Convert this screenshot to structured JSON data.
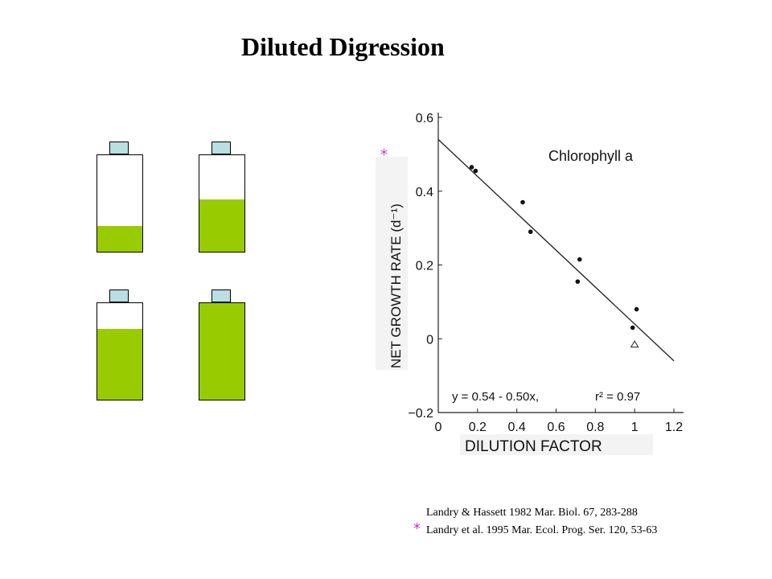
{
  "title": "Diluted Digression",
  "bottles": [
    {
      "fill_fraction": 0.27,
      "color": "#99cc00"
    },
    {
      "fill_fraction": 0.54,
      "color": "#99cc00"
    },
    {
      "fill_fraction": 0.73,
      "color": "#99cc00"
    },
    {
      "fill_fraction": 1.0,
      "color": "#99cc00"
    }
  ],
  "annotation_star": "*",
  "chart_data": {
    "type": "scatter",
    "title": "Chlorophyll a",
    "xlabel": "DILUTION FACTOR",
    "ylabel": "NET GROWTH RATE (d⁻¹)",
    "xlim": [
      0,
      1.2
    ],
    "ylim": [
      -0.2,
      0.6
    ],
    "xticks": [
      "0",
      "0.2",
      "0.4",
      "0.6",
      "0.8",
      "1",
      "1.2"
    ],
    "yticks": [
      "−0.2",
      "0",
      "0.2",
      "0.4",
      "0.6"
    ],
    "series": [
      {
        "marker": "dot",
        "points": [
          {
            "x": 0.17,
            "y": 0.465
          },
          {
            "x": 0.19,
            "y": 0.455
          },
          {
            "x": 0.43,
            "y": 0.37
          },
          {
            "x": 0.47,
            "y": 0.29
          },
          {
            "x": 0.72,
            "y": 0.215
          },
          {
            "x": 0.71,
            "y": 0.155
          },
          {
            "x": 1.01,
            "y": 0.08
          },
          {
            "x": 0.99,
            "y": 0.03
          }
        ]
      },
      {
        "marker": "triangle",
        "points": [
          {
            "x": 1.0,
            "y": -0.015
          }
        ]
      }
    ],
    "fit": {
      "intercept": 0.54,
      "slope": -0.5,
      "x_range": [
        0,
        1.2
      ]
    },
    "equation": "y = 0.54 - 0.50x,",
    "r2": "r² = 0.97"
  },
  "references": [
    "Landry & Hassett 1982 Mar. Biol. 67, 283-288",
    "Landry et al. 1995 Mar. Ecol. Prog. Ser. 120, 53-63"
  ],
  "colors": {
    "fill": "#99cc00",
    "cap": "#b9dfe0",
    "star": "#cc33cc"
  }
}
